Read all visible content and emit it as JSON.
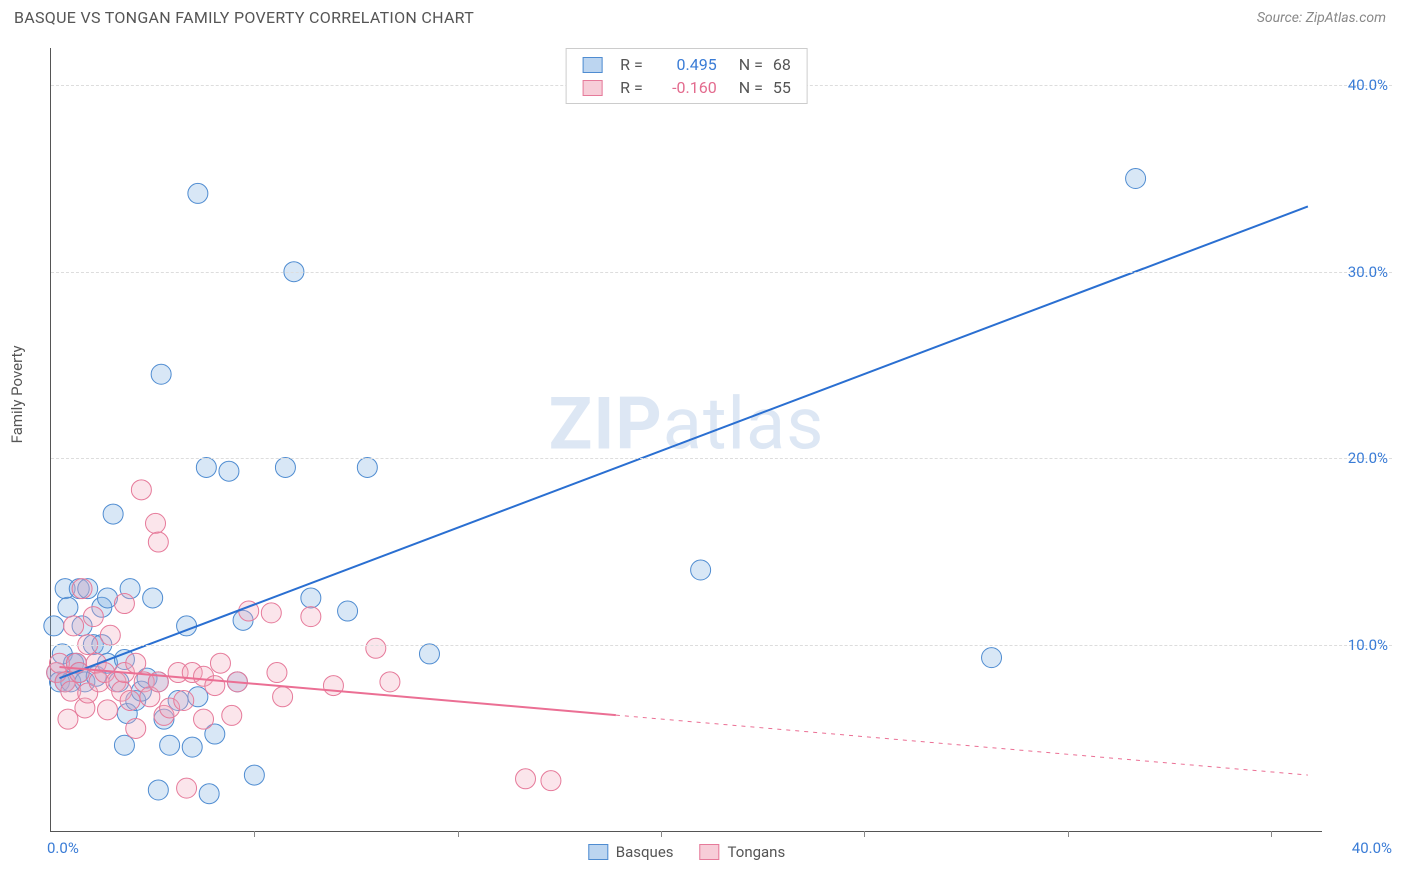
{
  "header": {
    "title": "BASQUE VS TONGAN FAMILY POVERTY CORRELATION CHART",
    "source": "Source: ZipAtlas.com"
  },
  "chart": {
    "type": "scatter",
    "ylabel": "Family Poverty",
    "x_origin_label": "0.0%",
    "x_max_label": "40.0%",
    "xlim": [
      0,
      45
    ],
    "ylim": [
      0,
      42
    ],
    "xtick_positions_pct": [
      16.0,
      32.0,
      48.0,
      64.0,
      80.0,
      96.0
    ],
    "y_gridlines": [
      {
        "value": 10.0,
        "label": "10.0%"
      },
      {
        "value": 20.0,
        "label": "20.0%"
      },
      {
        "value": 30.0,
        "label": "30.0%"
      },
      {
        "value": 40.0,
        "label": "40.0%"
      }
    ],
    "background_color": "#ffffff",
    "grid_color": "#dddddd",
    "axis_color": "#555555",
    "tick_label_color": "#3a7cd6",
    "watermark": {
      "bold": "ZIP",
      "rest": "atlas"
    },
    "series": [
      {
        "name": "Basques",
        "fill": "#7eaee2",
        "stroke": "#4f8cd1",
        "marker_radius": 10,
        "reg_line": {
          "x1": 0.3,
          "y1": 8.2,
          "x2": 44.5,
          "y2": 33.5,
          "color": "#2a6fd1",
          "width": 2,
          "solid_to_x": 44.5
        },
        "points": [
          [
            0.1,
            11
          ],
          [
            0.2,
            8.5
          ],
          [
            0.3,
            8
          ],
          [
            0.4,
            9.5
          ],
          [
            0.5,
            8
          ],
          [
            0.5,
            13
          ],
          [
            0.6,
            12
          ],
          [
            0.7,
            8
          ],
          [
            0.8,
            9
          ],
          [
            0.9,
            9
          ],
          [
            1.0,
            13
          ],
          [
            1.0,
            8.5
          ],
          [
            1.1,
            11
          ],
          [
            1.2,
            8
          ],
          [
            1.3,
            13
          ],
          [
            1.5,
            10
          ],
          [
            1.6,
            8.3
          ],
          [
            1.8,
            10
          ],
          [
            1.8,
            12
          ],
          [
            2.0,
            12.5
          ],
          [
            2.0,
            9
          ],
          [
            2.2,
            17
          ],
          [
            2.4,
            8
          ],
          [
            2.6,
            4.6
          ],
          [
            2.6,
            9.2
          ],
          [
            2.7,
            6.3
          ],
          [
            2.8,
            13
          ],
          [
            3.0,
            7
          ],
          [
            3.2,
            7.5
          ],
          [
            3.4,
            8.2
          ],
          [
            3.6,
            12.5
          ],
          [
            3.8,
            2.2
          ],
          [
            3.8,
            8
          ],
          [
            3.9,
            24.5
          ],
          [
            4.0,
            6
          ],
          [
            4.2,
            4.6
          ],
          [
            4.5,
            7
          ],
          [
            4.8,
            11
          ],
          [
            5.0,
            4.5
          ],
          [
            5.2,
            7.2
          ],
          [
            5.2,
            34.2
          ],
          [
            5.5,
            19.5
          ],
          [
            5.6,
            2
          ],
          [
            5.8,
            5.2
          ],
          [
            6.3,
            19.3
          ],
          [
            6.6,
            8
          ],
          [
            6.8,
            11.3
          ],
          [
            7.2,
            3
          ],
          [
            8.3,
            19.5
          ],
          [
            8.6,
            30
          ],
          [
            9.2,
            12.5
          ],
          [
            10.5,
            11.8
          ],
          [
            11.2,
            19.5
          ],
          [
            13.4,
            9.5
          ],
          [
            23.0,
            14.0
          ],
          [
            33.3,
            9.3
          ],
          [
            38.4,
            35.0
          ]
        ]
      },
      {
        "name": "Tongans",
        "fill": "#f3a9bd",
        "stroke": "#e67a9a",
        "marker_radius": 10,
        "reg_line": {
          "x1": 0.3,
          "y1": 8.8,
          "x2": 44.5,
          "y2": 3.0,
          "color": "#eb6f94",
          "width": 2,
          "solid_to_x": 20.0
        },
        "points": [
          [
            0.2,
            8.5
          ],
          [
            0.3,
            9
          ],
          [
            0.5,
            8
          ],
          [
            0.6,
            6
          ],
          [
            0.7,
            7.5
          ],
          [
            0.8,
            11
          ],
          [
            0.9,
            9
          ],
          [
            1.0,
            8.5
          ],
          [
            1.1,
            13
          ],
          [
            1.2,
            6.6
          ],
          [
            1.3,
            10
          ],
          [
            1.3,
            7.4
          ],
          [
            1.5,
            11.5
          ],
          [
            1.6,
            9
          ],
          [
            1.7,
            8
          ],
          [
            1.9,
            8.5
          ],
          [
            2.0,
            6.5
          ],
          [
            2.1,
            10.5
          ],
          [
            2.3,
            8
          ],
          [
            2.5,
            7.5
          ],
          [
            2.6,
            8.5
          ],
          [
            2.8,
            7
          ],
          [
            2.6,
            12.2
          ],
          [
            3.0,
            9
          ],
          [
            3.0,
            5.5
          ],
          [
            3.2,
            18.3
          ],
          [
            3.3,
            8
          ],
          [
            3.5,
            7.2
          ],
          [
            3.7,
            16.5
          ],
          [
            3.8,
            8
          ],
          [
            3.8,
            15.5
          ],
          [
            4.0,
            6.2
          ],
          [
            4.2,
            6.6
          ],
          [
            4.5,
            8.5
          ],
          [
            4.7,
            7
          ],
          [
            4.8,
            2.3
          ],
          [
            5.0,
            8.5
          ],
          [
            5.4,
            6
          ],
          [
            5.4,
            8.3
          ],
          [
            5.8,
            7.8
          ],
          [
            6.0,
            9
          ],
          [
            6.4,
            6.2
          ],
          [
            6.6,
            8
          ],
          [
            7.0,
            11.8
          ],
          [
            7.8,
            11.7
          ],
          [
            8.0,
            8.5
          ],
          [
            8.2,
            7.2
          ],
          [
            9.2,
            11.5
          ],
          [
            10.0,
            7.8
          ],
          [
            11.5,
            9.8
          ],
          [
            12.0,
            8
          ],
          [
            16.8,
            2.8
          ],
          [
            17.7,
            2.7
          ]
        ]
      }
    ],
    "top_legend": [
      {
        "swatch_fill": "#bcd5f0",
        "swatch_stroke": "#4f8cd1",
        "r_value": "0.495",
        "n_value": "68",
        "value_class": "rval-blue"
      },
      {
        "swatch_fill": "#f7cdd8",
        "swatch_stroke": "#e67a9a",
        "r_value": "-0.160",
        "n_value": "55",
        "value_class": "rval-pink"
      }
    ],
    "footer_legend": [
      {
        "swatch_fill": "#bcd5f0",
        "swatch_stroke": "#4f8cd1",
        "label": "Basques"
      },
      {
        "swatch_fill": "#f7cdd8",
        "swatch_stroke": "#e67a9a",
        "label": "Tongans"
      }
    ]
  }
}
